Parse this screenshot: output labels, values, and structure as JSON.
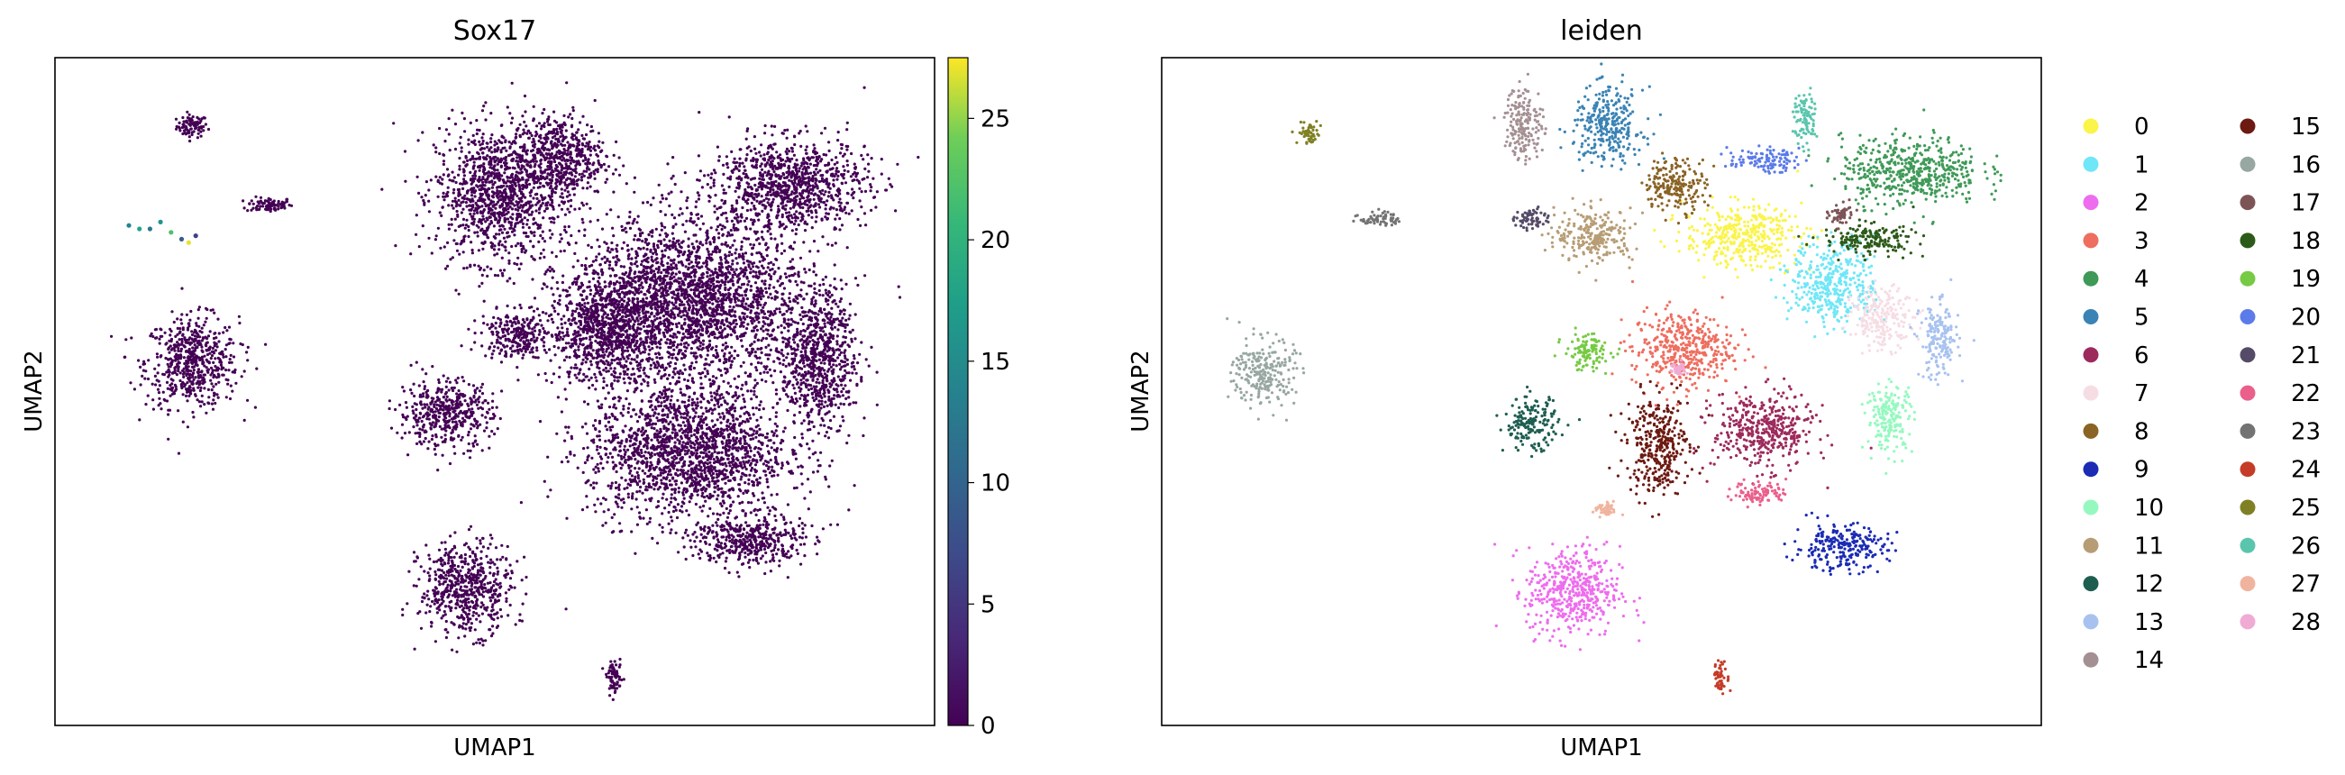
{
  "chart_data": [
    {
      "type": "scatter",
      "title": "Sox17",
      "xlabel": "UMAP1",
      "ylabel": "UMAP2",
      "grid": false,
      "color_by": "Sox17 expression",
      "colormap": "viridis",
      "colorbar": {
        "min": 0,
        "max": 27.5,
        "ticks": [
          0,
          5,
          10,
          15,
          20,
          25
        ]
      },
      "background_value": 0,
      "expressing_points": [
        {
          "x": 1.6,
          "y": 8.6,
          "value": 14
        },
        {
          "x": 1.9,
          "y": 8.5,
          "value": 18
        },
        {
          "x": 2.2,
          "y": 8.5,
          "value": 12
        },
        {
          "x": 2.5,
          "y": 8.7,
          "value": 16
        },
        {
          "x": 2.8,
          "y": 8.4,
          "value": 22
        },
        {
          "x": 3.1,
          "y": 8.2,
          "value": 9
        },
        {
          "x": 3.3,
          "y": 8.1,
          "value": 27
        },
        {
          "x": 3.5,
          "y": 8.3,
          "value": 6
        }
      ]
    },
    {
      "type": "scatter",
      "title": "leiden",
      "xlabel": "UMAP1",
      "ylabel": "UMAP2",
      "grid": false,
      "color_by": "leiden cluster",
      "legend_position": "right, outside, two columns",
      "series": [
        {
          "name": "0",
          "color": "#fbf449",
          "center": [
            16.0,
            8.3
          ],
          "spread": [
            1.5,
            0.8
          ]
        },
        {
          "name": "1",
          "color": "#6fe7f7",
          "center": [
            18.6,
            6.9
          ],
          "spread": [
            1.1,
            1.1
          ]
        },
        {
          "name": "2",
          "color": "#ee6cee",
          "center": [
            11.2,
            -2.1
          ],
          "spread": [
            1.2,
            1.2
          ]
        },
        {
          "name": "3",
          "color": "#ee6e5f",
          "center": [
            14.3,
            5.0
          ],
          "spread": [
            1.3,
            1.0
          ]
        },
        {
          "name": "4",
          "color": "#3f9a58",
          "center": [
            20.8,
            10.2
          ],
          "spread": [
            1.8,
            0.9
          ]
        },
        {
          "name": "5",
          "color": "#3a83b4",
          "center": [
            12.2,
            11.5
          ],
          "spread": [
            0.9,
            1.0
          ]
        },
        {
          "name": "6",
          "color": "#9d2a5c",
          "center": [
            16.6,
            2.6
          ],
          "spread": [
            1.3,
            1.0
          ]
        },
        {
          "name": "7",
          "color": "#f6dde4",
          "center": [
            20.0,
            5.9
          ],
          "spread": [
            0.8,
            0.8
          ]
        },
        {
          "name": "8",
          "color": "#8a6325",
          "center": [
            14.1,
            9.8
          ],
          "spread": [
            0.8,
            0.7
          ]
        },
        {
          "name": "9",
          "color": "#1b2bb4",
          "center": [
            18.8,
            -0.8
          ],
          "spread": [
            1.2,
            0.6
          ]
        },
        {
          "name": "10",
          "color": "#95f9bf",
          "center": [
            20.2,
            3.0
          ],
          "spread": [
            0.6,
            0.9
          ]
        },
        {
          "name": "11",
          "color": "#b79d75",
          "center": [
            11.8,
            8.3
          ],
          "spread": [
            1.0,
            0.7
          ]
        },
        {
          "name": "12",
          "color": "#1e5e50",
          "center": [
            10.0,
            2.8
          ],
          "spread": [
            0.7,
            0.7
          ]
        },
        {
          "name": "13",
          "color": "#a8c2f0",
          "center": [
            21.6,
            5.2
          ],
          "spread": [
            0.5,
            1.0
          ]
        },
        {
          "name": "14",
          "color": "#a49093",
          "center": [
            9.8,
            11.6
          ],
          "spread": [
            0.5,
            1.0
          ]
        },
        {
          "name": "15",
          "color": "#6c1a12",
          "center": [
            13.6,
            2.2
          ],
          "spread": [
            0.8,
            1.3
          ]
        },
        {
          "name": "16",
          "color": "#97a7a2",
          "center": [
            2.4,
            4.3
          ],
          "spread": [
            0.8,
            0.9
          ]
        },
        {
          "name": "17",
          "color": "#7d5456",
          "center": [
            18.8,
            8.9
          ],
          "spread": [
            0.3,
            0.3
          ]
        },
        {
          "name": "18",
          "color": "#2c5a18",
          "center": [
            19.6,
            8.2
          ],
          "spread": [
            1.2,
            0.4
          ]
        },
        {
          "name": "19",
          "color": "#77ca44",
          "center": [
            11.6,
            4.9
          ],
          "spread": [
            0.6,
            0.5
          ]
        },
        {
          "name": "20",
          "color": "#5b7be9",
          "center": [
            16.6,
            10.5
          ],
          "spread": [
            0.9,
            0.3
          ]
        },
        {
          "name": "21",
          "color": "#554b68",
          "center": [
            10.0,
            8.8
          ],
          "spread": [
            0.4,
            0.3
          ]
        },
        {
          "name": "22",
          "color": "#ea5f8b",
          "center": [
            16.5,
            0.8
          ],
          "spread": [
            0.7,
            0.3
          ]
        },
        {
          "name": "23",
          "color": "#737373",
          "center": [
            5.7,
            8.8
          ],
          "spread": [
            0.5,
            0.2
          ]
        },
        {
          "name": "24",
          "color": "#c53b27",
          "center": [
            15.4,
            -4.6
          ],
          "spread": [
            0.2,
            0.4
          ]
        },
        {
          "name": "25",
          "color": "#7f8023",
          "center": [
            3.7,
            11.3
          ],
          "spread": [
            0.3,
            0.3
          ]
        },
        {
          "name": "26",
          "color": "#5ac5ad",
          "center": [
            17.8,
            11.7
          ],
          "spread": [
            0.3,
            0.7
          ]
        },
        {
          "name": "27",
          "color": "#f0b49e",
          "center": [
            12.1,
            0.3
          ],
          "spread": [
            0.3,
            0.2
          ]
        },
        {
          "name": "28",
          "color": "#f0abd4",
          "center": [
            14.2,
            4.4
          ],
          "spread": [
            0.2,
            0.2
          ]
        }
      ]
    }
  ],
  "background_clusters": [
    {
      "center": [
        3.4,
        11.5
      ],
      "spread": [
        0.4,
        0.3
      ]
    },
    {
      "center": [
        5.6,
        9.2
      ],
      "spread": [
        0.6,
        0.2
      ]
    },
    {
      "center": [
        3.4,
        4.6
      ],
      "spread": [
        1.2,
        1.2
      ]
    },
    {
      "center": [
        12.1,
        9.5
      ],
      "spread": [
        1.6,
        1.8
      ]
    },
    {
      "center": [
        13.8,
        10.6
      ],
      "spread": [
        1.2,
        1.1
      ]
    },
    {
      "center": [
        17.6,
        6.4
      ],
      "spread": [
        3.0,
        2.2
      ]
    },
    {
      "center": [
        20.4,
        9.8
      ],
      "spread": [
        2.0,
        1.2
      ]
    },
    {
      "center": [
        21.2,
        4.7
      ],
      "spread": [
        1.0,
        1.8
      ]
    },
    {
      "center": [
        17.5,
        2.0
      ],
      "spread": [
        2.6,
        1.8
      ]
    },
    {
      "center": [
        11.2,
        -2.0
      ],
      "spread": [
        1.2,
        1.2
      ]
    },
    {
      "center": [
        10.6,
        3.1
      ],
      "spread": [
        1.2,
        0.9
      ]
    },
    {
      "center": [
        15.2,
        5.6
      ],
      "spread": [
        1.5,
        1.4
      ]
    },
    {
      "center": [
        15.4,
        -4.6
      ],
      "spread": [
        0.2,
        0.4
      ]
    },
    {
      "center": [
        12.6,
        5.4
      ],
      "spread": [
        0.9,
        0.6
      ]
    },
    {
      "center": [
        19.2,
        -0.6
      ],
      "spread": [
        1.4,
        0.7
      ]
    }
  ]
}
